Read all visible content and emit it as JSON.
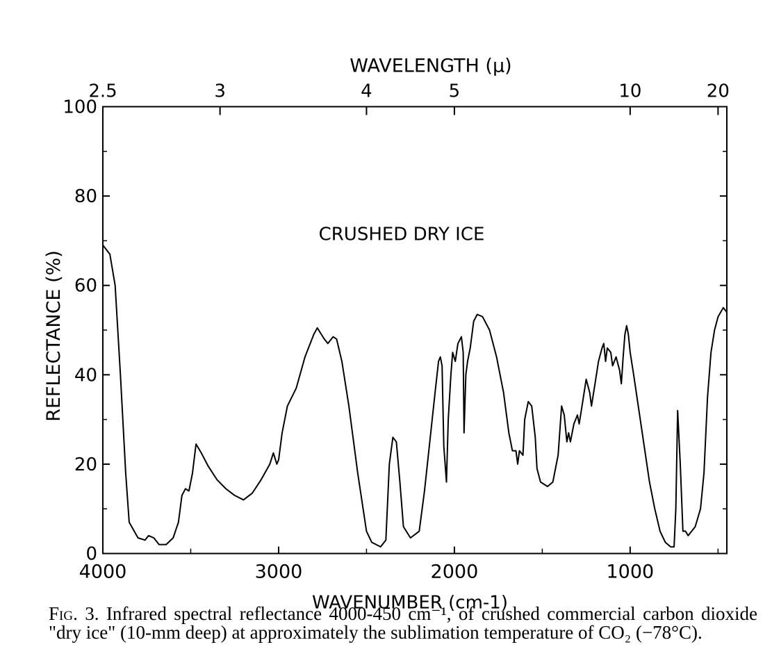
{
  "chart_data": {
    "type": "line",
    "title": "CRUSHED DRY ICE",
    "xlabel": "WAVENUMBER (cm-1)",
    "ylabel": "REFLECTANCE (%)",
    "top_axis_label": "WAVELENGTH (μ)",
    "xlim": [
      4000,
      450
    ],
    "ylim": [
      0,
      100
    ],
    "x_ticks": [
      4000,
      3000,
      2000,
      1000
    ],
    "x_tick_labels": [
      "4000",
      "3000",
      "2000",
      "1000"
    ],
    "y_ticks": [
      0,
      20,
      40,
      60,
      80,
      100
    ],
    "y_tick_labels": [
      "0",
      "20",
      "40",
      "60",
      "80",
      "100"
    ],
    "top_ticks_wavelength": [
      2.5,
      3,
      4,
      5,
      10,
      20
    ],
    "top_tick_labels": [
      "2.5",
      "3",
      "4",
      "5",
      "10",
      "20"
    ],
    "grid": false,
    "series": [
      {
        "points": [
          [
            4000,
            69
          ],
          [
            3960,
            67
          ],
          [
            3930,
            60
          ],
          [
            3900,
            40
          ],
          [
            3870,
            18
          ],
          [
            3850,
            7
          ],
          [
            3800,
            3.5
          ],
          [
            3760,
            3
          ],
          [
            3740,
            4
          ],
          [
            3710,
            3.5
          ],
          [
            3680,
            2
          ],
          [
            3640,
            2
          ],
          [
            3600,
            3.5
          ],
          [
            3570,
            7
          ],
          [
            3550,
            13
          ],
          [
            3530,
            14.5
          ],
          [
            3510,
            14
          ],
          [
            3490,
            18
          ],
          [
            3470,
            24.5
          ],
          [
            3440,
            22.5
          ],
          [
            3400,
            19.5
          ],
          [
            3350,
            16.5
          ],
          [
            3300,
            14.5
          ],
          [
            3250,
            13
          ],
          [
            3200,
            12
          ],
          [
            3150,
            13.5
          ],
          [
            3100,
            16.5
          ],
          [
            3050,
            20
          ],
          [
            3030,
            22.5
          ],
          [
            3010,
            20
          ],
          [
            3000,
            21
          ],
          [
            2980,
            27
          ],
          [
            2950,
            33
          ],
          [
            2900,
            37
          ],
          [
            2850,
            44
          ],
          [
            2800,
            49
          ],
          [
            2780,
            50.5
          ],
          [
            2740,
            48
          ],
          [
            2720,
            47
          ],
          [
            2690,
            48.5
          ],
          [
            2670,
            48
          ],
          [
            2640,
            43
          ],
          [
            2600,
            33
          ],
          [
            2550,
            18
          ],
          [
            2500,
            5
          ],
          [
            2470,
            2.5
          ],
          [
            2420,
            1.5
          ],
          [
            2390,
            3
          ],
          [
            2370,
            20
          ],
          [
            2350,
            26
          ],
          [
            2330,
            25
          ],
          [
            2310,
            16
          ],
          [
            2290,
            6
          ],
          [
            2250,
            3.5
          ],
          [
            2200,
            5
          ],
          [
            2170,
            14
          ],
          [
            2140,
            25
          ],
          [
            2110,
            36
          ],
          [
            2090,
            43
          ],
          [
            2080,
            44
          ],
          [
            2070,
            42
          ],
          [
            2060,
            24
          ],
          [
            2045,
            16
          ],
          [
            2035,
            30
          ],
          [
            2020,
            40
          ],
          [
            2010,
            45
          ],
          [
            1995,
            43
          ],
          [
            1980,
            47
          ],
          [
            1960,
            48.5
          ],
          [
            1950,
            45
          ],
          [
            1945,
            27
          ],
          [
            1935,
            40
          ],
          [
            1925,
            43
          ],
          [
            1910,
            46
          ],
          [
            1890,
            52
          ],
          [
            1870,
            53.5
          ],
          [
            1840,
            53
          ],
          [
            1800,
            50
          ],
          [
            1760,
            44
          ],
          [
            1720,
            36
          ],
          [
            1690,
            27
          ],
          [
            1670,
            23
          ],
          [
            1650,
            23
          ],
          [
            1640,
            20
          ],
          [
            1630,
            23
          ],
          [
            1610,
            22
          ],
          [
            1600,
            30
          ],
          [
            1580,
            34
          ],
          [
            1560,
            33
          ],
          [
            1540,
            26
          ],
          [
            1530,
            19
          ],
          [
            1510,
            16
          ],
          [
            1470,
            15
          ],
          [
            1440,
            16
          ],
          [
            1410,
            22
          ],
          [
            1390,
            33
          ],
          [
            1375,
            31
          ],
          [
            1360,
            25
          ],
          [
            1350,
            27
          ],
          [
            1340,
            25
          ],
          [
            1320,
            29
          ],
          [
            1300,
            31
          ],
          [
            1290,
            29
          ],
          [
            1270,
            34
          ],
          [
            1250,
            39
          ],
          [
            1230,
            36
          ],
          [
            1220,
            33
          ],
          [
            1200,
            38
          ],
          [
            1180,
            43
          ],
          [
            1160,
            46
          ],
          [
            1150,
            47
          ],
          [
            1140,
            43
          ],
          [
            1130,
            46
          ],
          [
            1110,
            45
          ],
          [
            1100,
            42
          ],
          [
            1080,
            44
          ],
          [
            1060,
            41
          ],
          [
            1050,
            38
          ],
          [
            1040,
            44
          ],
          [
            1030,
            49
          ],
          [
            1020,
            51
          ],
          [
            1010,
            49
          ],
          [
            1000,
            45
          ],
          [
            980,
            40
          ],
          [
            950,
            32
          ],
          [
            920,
            24
          ],
          [
            890,
            16
          ],
          [
            860,
            10
          ],
          [
            830,
            5
          ],
          [
            800,
            2.5
          ],
          [
            770,
            1.5
          ],
          [
            750,
            1.5
          ],
          [
            740,
            10
          ],
          [
            730,
            32
          ],
          [
            715,
            20
          ],
          [
            700,
            5
          ],
          [
            685,
            5
          ],
          [
            670,
            4
          ],
          [
            650,
            5
          ],
          [
            630,
            6
          ],
          [
            600,
            10
          ],
          [
            580,
            18
          ],
          [
            560,
            35
          ],
          [
            540,
            45
          ],
          [
            520,
            50
          ],
          [
            500,
            53
          ],
          [
            470,
            55
          ],
          [
            450,
            54
          ]
        ]
      }
    ]
  },
  "caption": {
    "fig_label": "Fig. 3.",
    "text": "Infrared spectral reflectance 4000-450 cm⁻¹, of crushed commercial carbon dioxide \"dry ice\" (10-mm deep) at approximately the sublimation temperature of CO₂ (−78°C)."
  }
}
